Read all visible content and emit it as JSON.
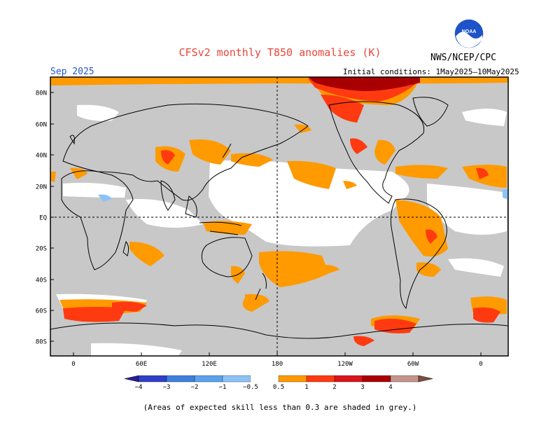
{
  "title": "CFSv2 monthly T850 anomalies (K)",
  "agency": "NWS/NCEP/CPC",
  "logo_text": "NOAA",
  "valid_month": "Sep 2025",
  "initial_conditions": "Initial conditions: 1May2025–10May2025",
  "lat_labels": [
    "80N",
    "60N",
    "40N",
    "20N",
    "EQ",
    "20S",
    "40S",
    "60S",
    "80S"
  ],
  "lon_labels": [
    "0",
    "60E",
    "120E",
    "180",
    "120W",
    "60W",
    "0"
  ],
  "colorbar": {
    "tick_labels": [
      "−4",
      "−3",
      "−2",
      "−1",
      "−0.5",
      "0.5",
      "1",
      "2",
      "3",
      "4"
    ],
    "colors": [
      "#2a1d9c",
      "#2f3fc7",
      "#3f7fe0",
      "#5aa2ee",
      "#8cc3f5",
      "#ffffff",
      "#ff9a00",
      "#ff3a10",
      "#d8151b",
      "#a80000",
      "#c4958a",
      "#7e4f3f"
    ]
  },
  "grey_color": "#c8c8c8",
  "footnote": "(Areas of expected skill less than 0.3 are shaded in grey.)"
}
